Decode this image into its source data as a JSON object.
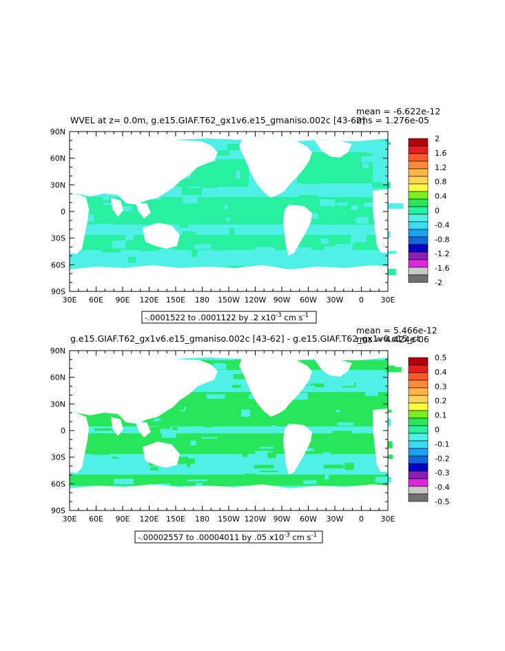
{
  "chart_data": [
    {
      "type": "heatmap",
      "title": "WVEL at z=    0.0m, g.e15.GIAF.T62_gx1v6.e15_gmaniso.002c [43-62]",
      "mean_text": "mean = -6.622e-12",
      "rms_text": "rms = 1.276e-05",
      "range_text": "-.0001522 to .0001122 by .2 x10",
      "range_exp": "-3",
      "range_unit": " cm s",
      "range_unit_exp": "-1",
      "x_ticks": [
        "30E",
        "60E",
        "90E",
        "120E",
        "150E",
        "180",
        "150W",
        "120W",
        "90W",
        "60W",
        "30W",
        "0",
        "30E"
      ],
      "y_ticks": [
        "90N",
        "60N",
        "30N",
        "0",
        "30S",
        "60S",
        "90S"
      ],
      "colorbar": {
        "labels": [
          "2",
          "1.6",
          "1.2",
          "0.8",
          "0.4",
          "0",
          "-0.4",
          "-0.8",
          "-1.2",
          "-1.6",
          "-2"
        ],
        "colors": [
          "#b4000a",
          "#e61e1e",
          "#ff5a28",
          "#ff8c3c",
          "#ffb446",
          "#ffd25a",
          "#ffff3c",
          "#78f01e",
          "#28e65a",
          "#28f0a0",
          "#50f0e6",
          "#3cdcf0",
          "#1ea0f0",
          "#1464dc",
          "#0000c8",
          "#8c1eb4",
          "#dc28dc",
          "#c8c8c8",
          "#707070"
        ]
      },
      "fields": {
        "positive_color": "#28f0a0",
        "negative_color": "#50f0e6"
      }
    },
    {
      "type": "heatmap",
      "title": "g.e15.GIAF.T62_gx1v6.e15_gmaniso.002c [43-62] - g.e15.GIAF.T62_gx1v6.e15_ct",
      "mean_text": "mean = 5.466e-12",
      "rms_text": "rms = 4.424e-06",
      "range_text": "-.00002557 to .00004011 by .05 x10",
      "range_exp": "-3",
      "range_unit": " cm s",
      "range_unit_exp": "-1",
      "x_ticks": [
        "30E",
        "60E",
        "90E",
        "120E",
        "150E",
        "180",
        "150W",
        "120W",
        "90W",
        "60W",
        "30W",
        "0",
        "30E"
      ],
      "y_ticks": [
        "90N",
        "60N",
        "30N",
        "0",
        "30S",
        "60S",
        "90S"
      ],
      "colorbar": {
        "labels": [
          "0.5",
          "0.4",
          "0.3",
          "0.2",
          "0.1",
          "0",
          "-0.1",
          "-0.2",
          "-0.3",
          "-0.4",
          "-0.5"
        ],
        "colors": [
          "#b4000a",
          "#e61e1e",
          "#ff5a28",
          "#ff8c3c",
          "#ffb446",
          "#ffd25a",
          "#ffff3c",
          "#78f01e",
          "#28e65a",
          "#28f0a0",
          "#50f0e6",
          "#3cdcf0",
          "#1ea0f0",
          "#1464dc",
          "#0000c8",
          "#8c1eb4",
          "#dc28dc",
          "#c8c8c8",
          "#707070"
        ]
      },
      "fields": {
        "positive_color": "#28e65a",
        "negative_color": "#50f0e6"
      }
    }
  ]
}
